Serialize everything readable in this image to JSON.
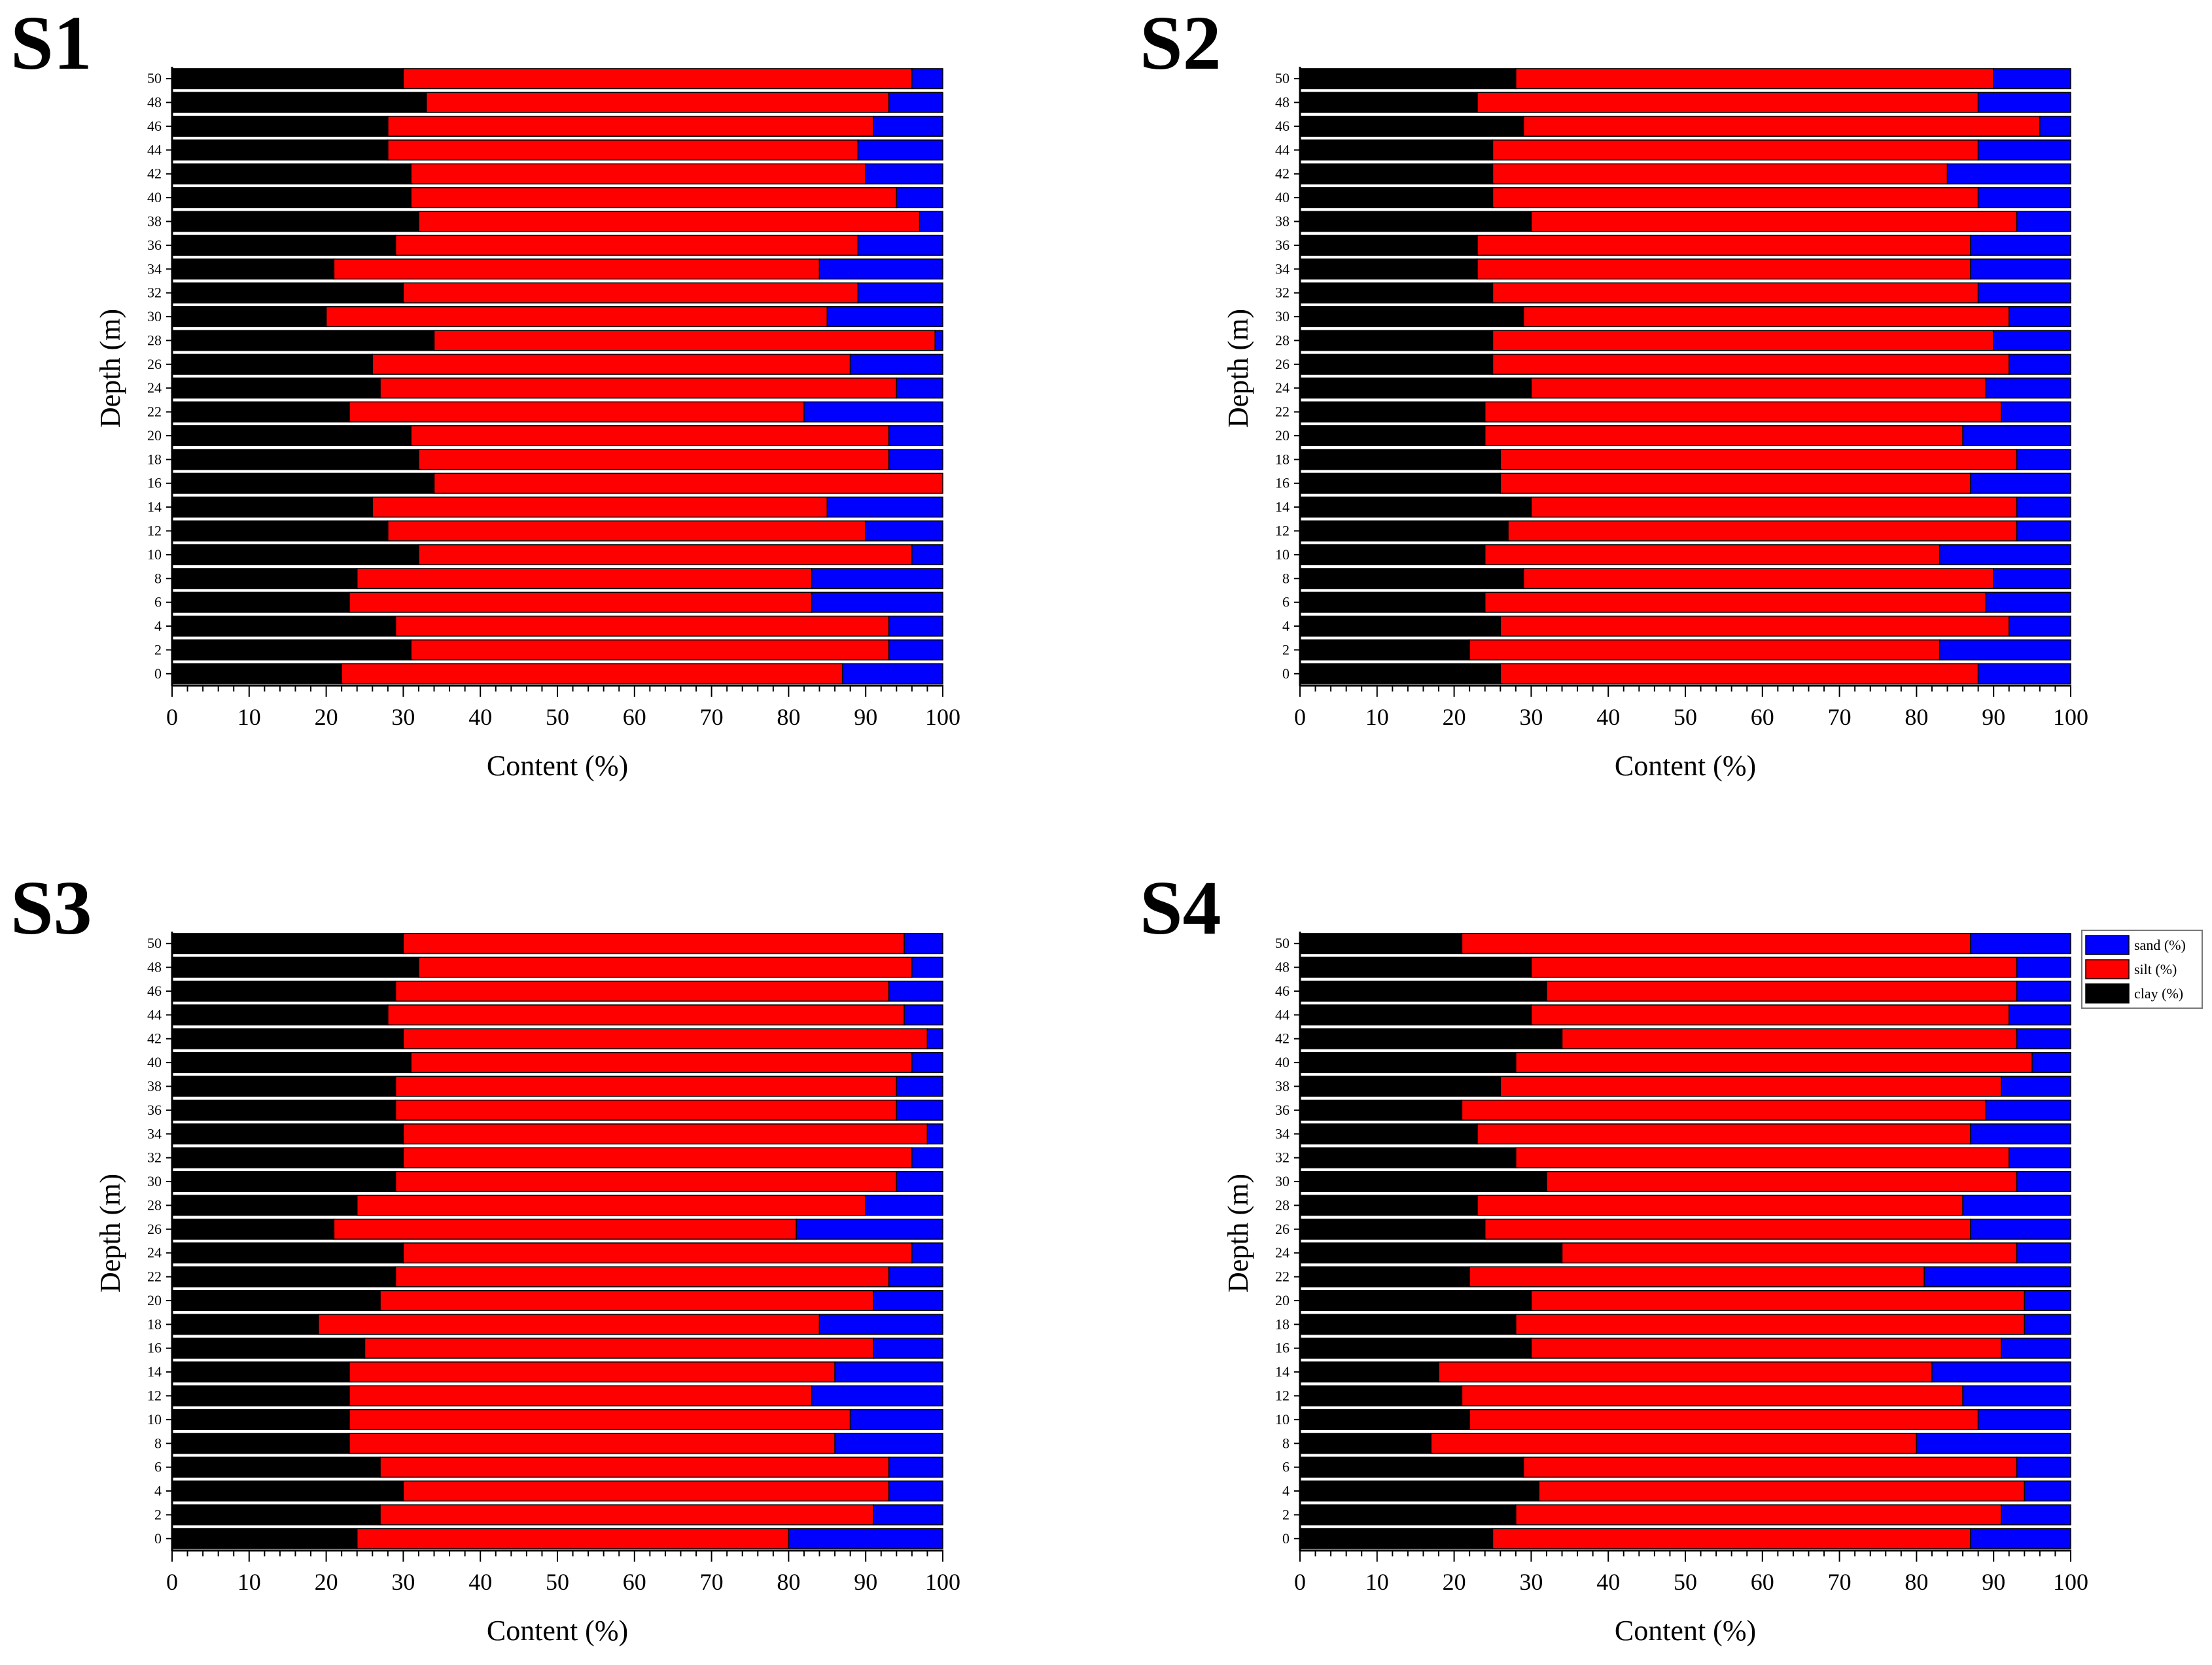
{
  "colors": {
    "sand": "#0000ff",
    "silt": "#ff0000",
    "clay": "#000000",
    "outline": "#000000"
  },
  "chart_data": [
    {
      "type": "bar",
      "title": "S1",
      "xlabel": "Content (%)",
      "ylabel": "Depth (m)",
      "xlim": [
        0,
        100
      ],
      "xticks": [
        "0",
        "10",
        "20",
        "30",
        "40",
        "50",
        "60",
        "70",
        "80",
        "90",
        "100"
      ],
      "categories": [
        "0",
        "2",
        "4",
        "6",
        "8",
        "10",
        "12",
        "14",
        "16",
        "18",
        "20",
        "22",
        "24",
        "26",
        "28",
        "30",
        "32",
        "34",
        "36",
        "38",
        "40",
        "42",
        "44",
        "46",
        "48",
        "50"
      ],
      "series": [
        {
          "name": "clay (%)",
          "values": [
            22,
            31,
            29,
            23,
            24,
            32,
            28,
            26,
            34,
            32,
            31,
            23,
            27,
            26,
            34,
            20,
            30,
            21,
            29,
            32,
            31,
            31,
            28,
            28,
            33,
            30
          ]
        },
        {
          "name": "silt (%)",
          "values": [
            65,
            62,
            64,
            60,
            59,
            64,
            62,
            59,
            66,
            61,
            62,
            59,
            67,
            62,
            65,
            65,
            59,
            63,
            60,
            65,
            63,
            59,
            61,
            63,
            60,
            66
          ]
        },
        {
          "name": "sand (%)",
          "values": [
            13,
            7,
            7,
            17,
            17,
            4,
            10,
            15,
            0,
            7,
            7,
            18,
            6,
            12,
            1,
            15,
            11,
            16,
            11,
            3,
            6,
            10,
            11,
            9,
            7,
            4
          ]
        }
      ]
    },
    {
      "type": "bar",
      "title": "S2",
      "xlabel": "Content (%)",
      "ylabel": "Depth (m)",
      "xlim": [
        0,
        100
      ],
      "xticks": [
        "0",
        "10",
        "20",
        "30",
        "40",
        "50",
        "60",
        "70",
        "80",
        "90",
        "100"
      ],
      "categories": [
        "0",
        "2",
        "4",
        "6",
        "8",
        "10",
        "12",
        "14",
        "16",
        "18",
        "20",
        "22",
        "24",
        "26",
        "28",
        "30",
        "32",
        "34",
        "36",
        "38",
        "40",
        "42",
        "44",
        "46",
        "48",
        "50"
      ],
      "series": [
        {
          "name": "clay (%)",
          "values": [
            26,
            22,
            26,
            24,
            29,
            24,
            27,
            30,
            26,
            26,
            24,
            24,
            30,
            25,
            25,
            29,
            25,
            23,
            23,
            30,
            25,
            25,
            25,
            29,
            23,
            28
          ]
        },
        {
          "name": "silt (%)",
          "values": [
            62,
            61,
            66,
            65,
            61,
            59,
            66,
            63,
            61,
            67,
            62,
            67,
            59,
            67,
            65,
            63,
            63,
            64,
            64,
            63,
            63,
            59,
            63,
            67,
            65,
            62
          ]
        },
        {
          "name": "sand (%)",
          "values": [
            12,
            17,
            8,
            11,
            10,
            17,
            7,
            7,
            13,
            7,
            14,
            9,
            11,
            8,
            10,
            8,
            12,
            13,
            13,
            7,
            12,
            16,
            12,
            4,
            12,
            10
          ]
        }
      ]
    },
    {
      "type": "bar",
      "title": "S3",
      "xlabel": "Content (%)",
      "ylabel": "Depth (m)",
      "xlim": [
        0,
        100
      ],
      "xticks": [
        "0",
        "10",
        "20",
        "30",
        "40",
        "50",
        "60",
        "70",
        "80",
        "90",
        "100"
      ],
      "categories": [
        "0",
        "2",
        "4",
        "6",
        "8",
        "10",
        "12",
        "14",
        "16",
        "18",
        "20",
        "22",
        "24",
        "26",
        "28",
        "30",
        "32",
        "34",
        "36",
        "38",
        "40",
        "42",
        "44",
        "46",
        "48",
        "50"
      ],
      "series": [
        {
          "name": "clay (%)",
          "values": [
            24,
            27,
            30,
            27,
            23,
            23,
            23,
            23,
            25,
            19,
            27,
            29,
            30,
            21,
            24,
            29,
            30,
            30,
            29,
            29,
            31,
            30,
            28,
            29,
            32,
            30
          ]
        },
        {
          "name": "silt (%)",
          "values": [
            56,
            64,
            63,
            66,
            63,
            65,
            60,
            63,
            66,
            65,
            64,
            64,
            66,
            60,
            66,
            65,
            66,
            68,
            65,
            65,
            65,
            68,
            67,
            64,
            64,
            65
          ]
        },
        {
          "name": "sand (%)",
          "values": [
            20,
            9,
            7,
            7,
            14,
            12,
            17,
            14,
            9,
            16,
            9,
            7,
            4,
            19,
            10,
            6,
            4,
            2,
            6,
            6,
            4,
            2,
            5,
            7,
            4,
            5
          ]
        }
      ]
    },
    {
      "type": "bar",
      "title": "S4",
      "xlabel": "Content (%)",
      "ylabel": "Depth (m)",
      "xlim": [
        0,
        100
      ],
      "xticks": [
        "0",
        "10",
        "20",
        "30",
        "40",
        "50",
        "60",
        "70",
        "80",
        "90",
        "100"
      ],
      "categories": [
        "0",
        "2",
        "4",
        "6",
        "8",
        "10",
        "12",
        "14",
        "16",
        "18",
        "20",
        "22",
        "24",
        "26",
        "28",
        "30",
        "32",
        "34",
        "36",
        "38",
        "40",
        "42",
        "44",
        "46",
        "48",
        "50"
      ],
      "series": [
        {
          "name": "clay (%)",
          "values": [
            25,
            28,
            31,
            29,
            17,
            22,
            21,
            18,
            30,
            28,
            30,
            22,
            34,
            24,
            23,
            32,
            28,
            23,
            21,
            26,
            28,
            34,
            30,
            32,
            30,
            21
          ]
        },
        {
          "name": "silt (%)",
          "values": [
            62,
            63,
            63,
            64,
            63,
            66,
            65,
            64,
            61,
            66,
            64,
            59,
            59,
            63,
            63,
            61,
            64,
            64,
            68,
            65,
            67,
            59,
            62,
            61,
            63,
            66
          ]
        },
        {
          "name": "sand (%)",
          "values": [
            13,
            9,
            6,
            7,
            20,
            12,
            14,
            18,
            9,
            6,
            6,
            19,
            7,
            13,
            14,
            7,
            8,
            13,
            11,
            9,
            5,
            7,
            8,
            7,
            7,
            13
          ]
        }
      ],
      "legend": {
        "position": "right",
        "entries": [
          "sand (%)",
          "silt (%)",
          "clay (%)"
        ]
      }
    }
  ]
}
